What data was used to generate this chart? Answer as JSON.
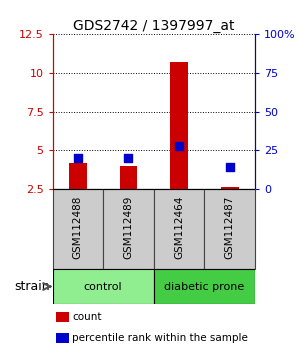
{
  "title": "GDS2742 / 1397997_at",
  "samples": [
    "GSM112488",
    "GSM112489",
    "GSM112464",
    "GSM112487"
  ],
  "red_values": [
    4.2,
    4.0,
    10.7,
    2.6
  ],
  "blue_values": [
    4.5,
    4.5,
    5.3,
    3.9
  ],
  "red_color": "#cc0000",
  "blue_color": "#0000cc",
  "ylim_left": [
    2.5,
    12.5
  ],
  "ylim_right": [
    0,
    100
  ],
  "yticks_left": [
    2.5,
    5.0,
    7.5,
    10.0,
    12.5
  ],
  "yticks_right": [
    0,
    25,
    50,
    75,
    100
  ],
  "ytick_labels_left": [
    "2.5",
    "5",
    "7.5",
    "10",
    "12.5"
  ],
  "ytick_labels_right": [
    "0",
    "25",
    "50",
    "75",
    "100%"
  ],
  "groups": [
    {
      "label": "control",
      "color": "#90ee90"
    },
    {
      "label": "diabetic prone",
      "color": "#44cc44"
    }
  ],
  "group_ranges": [
    [
      -0.5,
      1.5
    ],
    [
      1.5,
      3.5
    ]
  ],
  "strain_label": "strain",
  "legend_items": [
    {
      "color": "#cc0000",
      "label": "count"
    },
    {
      "color": "#0000cc",
      "label": "percentile rank within the sample"
    }
  ],
  "bar_width": 0.35,
  "blue_square_size": 40,
  "sample_label_gray": "#cccccc",
  "sample_box_edge": "#444444"
}
